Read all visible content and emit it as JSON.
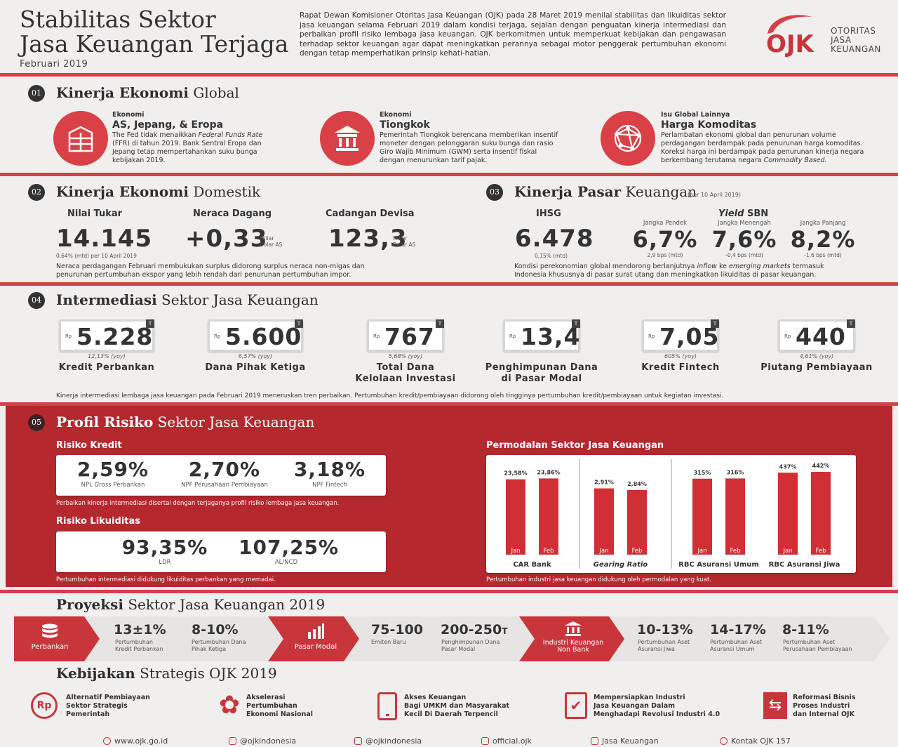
{
  "header": {
    "title_line1": "Stabilitas Sektor",
    "title_line2": "Jasa Keuangan Terjaga",
    "period": "Februari 2019",
    "intro": "Rapat Dewan Komisioner Otoritas Jasa Keuangan (OJK) pada 28 Maret 2019 menilai stabilitas dan likuiditas sektor jasa keuangan selama Februari 2019 dalam kondisi terjaga, sejalan dengan penguatan kinerja intermediasi dan perbaikan profil risiko lembaga jasa keuangan. OJK berkomitmen untuk memperkuat kebijakan dan pengawasan terhadap sektor keuangan agar dapat meningkatkan perannya sebagai motor penggerak pertumbuhan ekonomi dengan tetap memperhatikan prinsip kehati-hatian.",
    "logo_text": "OJK",
    "logo_l1": "OTORITAS",
    "logo_l2": "JASA",
    "logo_l3": "KEUANGAN"
  },
  "s1": {
    "no": "01",
    "title_bold": "Kinerja Ekonomi",
    "title_rest": " Global",
    "items": [
      {
        "kicker": "Ekonomi",
        "head": "AS, Jepang, & Eropa",
        "body1": "The Fed tidak menaikkan ",
        "body_it": "Federal Funds Rate",
        "body2": " (FFR) di tahun 2019. Bank Sentral Eropa dan Jepang tetap mempertahankan suku bunga kebijakan 2019.",
        "icon": "building-icon"
      },
      {
        "kicker": "Ekonomi",
        "head": "Tiongkok",
        "body1": "Pemerintah Tiongkok berencana memberikan insentif moneter dengan pelonggaran suku bunga dan rasio Giro Wajib Minimum (GWM) serta insentif fiskal dengan menurunkan tarif pajak.",
        "icon": "temple-icon"
      },
      {
        "kicker": "Isu Global Lainnya",
        "head": "Harga Komoditas",
        "body1": "Perlambatan ekonomi global dan penurunan volume perdagangan berdampak pada penurunan harga komoditas. Koreksi harga ini berdampak pada penurunan kinerja negara berkembang terutama negara ",
        "body_it": "Commodity Based.",
        "icon": "globe-network-icon"
      }
    ]
  },
  "s2": {
    "no": "02",
    "title_bold": "Kinerja Ekonomi",
    "title_rest": " Domestik",
    "nt_label": "Nilai Tukar",
    "nt_value": "14.145",
    "nt_note": "0,64% (mtd) per 10 April 2019",
    "nd_label": "Neraca Dagang",
    "nd_value": "+0,33",
    "nd_unit1": "Miliar",
    "nd_unit2": "Dolar AS",
    "cd_label": "Cadangan Devisa",
    "cd_value": "123,3",
    "cd_unit1": "Miliar",
    "cd_unit2": "Dolar AS",
    "desc": "Neraca perdagangan Februari membukukan surplus didorong surplus neraca non-migas dan penurunan pertumbuhan ekspor yang lebih rendah dari penurunan pertumbuhan impor."
  },
  "s3": {
    "no": "03",
    "title_bold": "Kinerja Pasar",
    "title_rest": " Keuangan",
    "date": "(per 10 April 2019)",
    "ihsg_label": "IHSG",
    "ihsg_value": "6.478",
    "ihsg_note": "0,15% (mtd)",
    "yield_label_it": "Yield",
    "yield_label": " SBN",
    "yields": [
      {
        "term": "Jangka Pendek",
        "value": "6,7%",
        "note": "2,9 bps (mtd)"
      },
      {
        "term": "Jangka Menengah",
        "value": "7,6%",
        "note": "-0,4 bps (mtd)"
      },
      {
        "term": "Jangka Panjang",
        "value": "8,2%",
        "note": "-1,6 bps (mtd)"
      }
    ],
    "desc1": "Kondisi perekonomian global mendorong berlanjutnya ",
    "desc_it1": "inflow",
    "desc2": " ke ",
    "desc_it2": "emerging markets",
    "desc3": " termasuk Indonesia khususnya di pasar surat utang dan meningkatkan likuiditas di pasar keuangan."
  },
  "s4": {
    "no": "04",
    "title_bold": "Intermediasi",
    "title_rest": " Sektor Jasa Keuangan",
    "items": [
      {
        "value": "5.228",
        "note": "12,13% (yoy)",
        "label": "Kredit Perbankan",
        "label2": ""
      },
      {
        "value": "5.600",
        "note": "6,57% (yoy)",
        "label": "Dana Pihak Ketiga",
        "label2": ""
      },
      {
        "value": "767",
        "note": "5,68% (yoy)",
        "label": "Total Dana",
        "label2": "Kelolaan Investasi"
      },
      {
        "value": "13,4",
        "note": "",
        "label": "Penghimpunan Dana",
        "label2": "di Pasar Modal"
      },
      {
        "value": "7,05",
        "note": "605% (yoy)",
        "label": "Kredit Fintech",
        "label2": ""
      },
      {
        "value": "440",
        "note": "4,61% (yoy)",
        "label": "Piutang Pembiayaan",
        "label2": ""
      }
    ],
    "rp": "Rp",
    "t": "T",
    "desc": "Kinerja intermediasi lembaga jasa keuangan pada Februari 2019 meneruskan tren perbaikan. Pertumbuhan kredit/pembiayaan didorong oleh tingginya pertumbuhan kredit/pembiayaan untuk kegiatan investasi."
  },
  "s5": {
    "no": "05",
    "title_bold": "Profil Risiko",
    "title_rest": " Sektor Jasa Keuangan",
    "rk_title": "Risiko Kredit",
    "rk": [
      {
        "value": "2,59%",
        "l1": "NPL ",
        "l_it": "Gross",
        "l2": " Perbankan"
      },
      {
        "value": "2,70%",
        "l1": "NPF Perusahaan Pembiayaan",
        "l_it": "",
        "l2": ""
      },
      {
        "value": "3,18%",
        "l1": "NPF Fintech",
        "l_it": "",
        "l2": ""
      }
    ],
    "rk_desc": "Perbaikan kinerja intermediasi disertai dengan terjaganya profil risiko lembaga jasa keuangan.",
    "rl_title": "Risiko Likuiditas",
    "rl": [
      {
        "value": "93,35%",
        "label": "LDR"
      },
      {
        "value": "107,25%",
        "label": "AL/NCD"
      }
    ],
    "rl_desc": "Pertumbuhan intermediasi didukung likuiditas perbankan yang memadai.",
    "pm_title": "Permodalan Sektor Jasa Keuangan",
    "pm_desc": "Pertumbuhan industri jasa keuangan didukung oleh permodalan yang kuat."
  },
  "chart_data": {
    "type": "bar",
    "title": "Permodalan Sektor Jasa Keuangan",
    "groups": [
      {
        "name": "CAR Bank",
        "italic": false,
        "categories": [
          "Jan",
          "Feb"
        ],
        "values": [
          23.58
        ],
        "values_all": [
          23.58,
          23.86
        ],
        "labels": [
          "23,58%",
          "23,86%"
        ]
      },
      {
        "name": "Gearing Ratio",
        "italic": true,
        "categories": [
          "Jan",
          "Feb"
        ],
        "values_all": [
          2.91,
          2.84
        ],
        "labels": [
          "2,91%",
          "2,84%"
        ]
      },
      {
        "name": "RBC Asuransi Umum",
        "italic": false,
        "categories": [
          "Jan",
          "Feb"
        ],
        "values_all": [
          315,
          316
        ],
        "labels": [
          "315%",
          "316%"
        ]
      },
      {
        "name": "RBC Asuransi Jiwa",
        "italic": false,
        "categories": [
          "Jan",
          "Feb"
        ],
        "values_all": [
          437,
          442
        ],
        "labels": [
          "437%",
          "442%"
        ]
      }
    ]
  },
  "proj": {
    "title_bold": "Proyeksi",
    "title_rest": " Sektor Jasa Keuangan 2019",
    "perbankan": "Perbankan",
    "pasar_modal": "Pasar Modal",
    "iknb1": "Industri Keuangan",
    "iknb2": "Non Bank",
    "items": [
      {
        "value": "13±1%",
        "l1": "Pertumbuhan",
        "l2": "Kredit Perbankan"
      },
      {
        "value": "8-10%",
        "l1": "Pertumbuhan Dana",
        "l2": "Pihak Ketiga"
      },
      {
        "value": "75-100",
        "l1": "Emiten Baru",
        "l2": ""
      },
      {
        "value": "200-250",
        "suffix": "T",
        "l1": "Penghimpunan Dana",
        "l2": "Pasar Modal"
      },
      {
        "value": "10-13%",
        "l1": "Pertumbuhan Aset",
        "l2": "Asuransi Jiwa"
      },
      {
        "value": "14-17%",
        "l1": "Pertumbuhan Aset",
        "l2": "Asuransi Umum"
      },
      {
        "value": "8-11%",
        "l1": "Pertumbuhan Aset",
        "l2": "Perusahaan Pembiayaan"
      }
    ]
  },
  "kebijakan": {
    "title_bold": "Kebijakan",
    "title_rest": " Strategis OJK 2019",
    "items": [
      {
        "l1": "Alternatif Pembiayaan",
        "l2": "Sektor Strategis",
        "l3": "Pemerintah",
        "icon": "rupiah-icon",
        "glyph": "Rp"
      },
      {
        "l1": "Akselerasi",
        "l2": "Pertumbuhan",
        "l3": "Ekonomi Nasional",
        "icon": "flower-icon",
        "glyph": "✿"
      },
      {
        "l1": "Akses Keuangan",
        "l2": "Bagi UMKM dan Masyarakat",
        "l3": "Kecil Di Daerah Terpencil",
        "icon": "mobile-icon",
        "glyph": ""
      },
      {
        "l1": "Mempersiapkan Industri",
        "l2": "Jasa Keuangan Dalam",
        "l3": "Menghadapi Revolusi Industri 4.0",
        "icon": "checklist-icon",
        "glyph": "✔"
      },
      {
        "l1": "Reformasi Bisnis",
        "l2": "Proses Industri",
        "l3": "dan Internal OJK",
        "icon": "reform-icon",
        "glyph": "⇆"
      }
    ]
  },
  "footer": {
    "web": "www.ojk.go.id",
    "twitter": "@ojkindonesia",
    "instagram": "@ojkindonesia",
    "facebook": "official.ojk",
    "youtube": "Jasa Keuangan",
    "contact": "Kontak OJK 157"
  },
  "colors": {
    "accent": "#d74046",
    "dark_red": "#b4282e",
    "text": "#2e2e2e"
  }
}
